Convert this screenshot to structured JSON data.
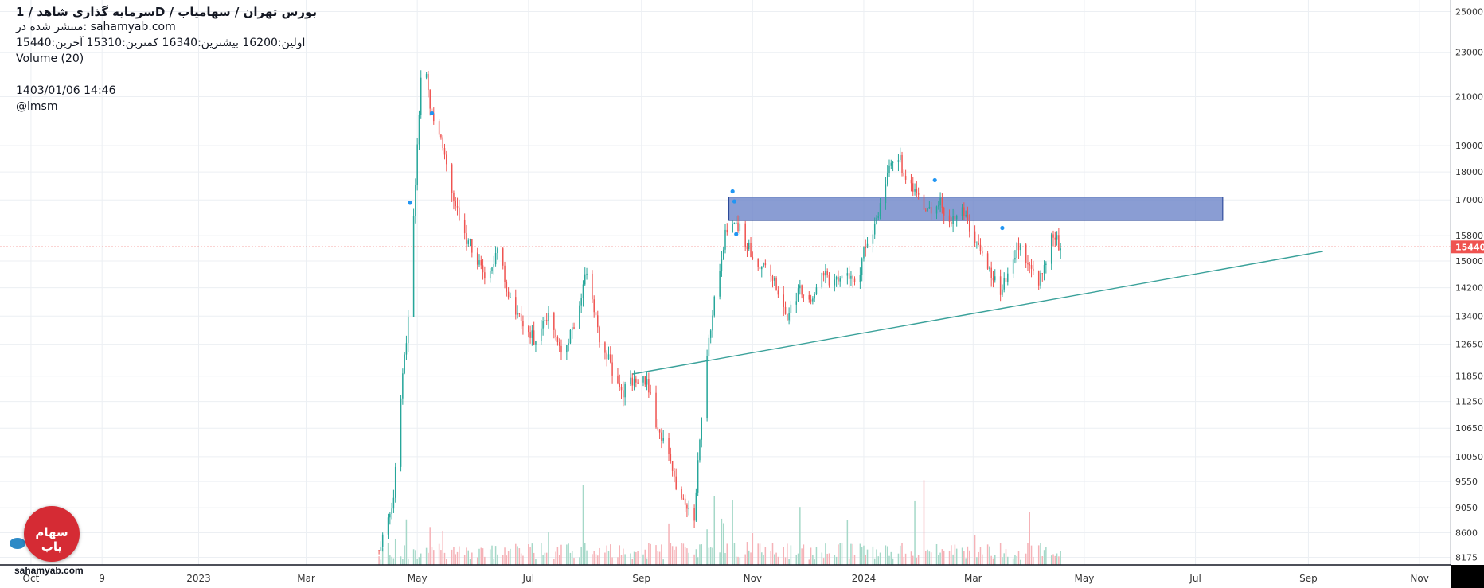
{
  "header": {
    "title": "سرمایه گذاری شاهد / 1D / بورس تهران / سهامیاب",
    "published": "منتشر شده در: sahamyab.com",
    "ohlc": "اولین:16200  بیشترین:16340  کمترین:15310  آخرین:15440",
    "volume_label": "Volume (20)",
    "datetime": "1403/01/06 14:46",
    "author": "@lmsm"
  },
  "branding": {
    "logo_text": "سهام یاب",
    "watermark": "sahamyab.com"
  },
  "colors": {
    "up": "#26a69a",
    "down": "#ef5350",
    "up_vol": "#a5d8c8",
    "down_vol": "#f5b2b7",
    "zone_fill": "#6d85c8",
    "zone_border": "#1c3b91",
    "trendline": "#3aa19a",
    "price_line": "#ef5350",
    "grid": "#eceff3",
    "axis_text": "#333333"
  },
  "chart_data": {
    "type": "candlestick",
    "interval": "1D",
    "y_scale": "log",
    "y_range": [
      8050,
      25600
    ],
    "x_range": [
      "2022-09-14",
      "2024-11-18"
    ],
    "y_ticks": [
      25000,
      23000,
      21000,
      19000,
      18000,
      17000,
      15800,
      15000,
      14200,
      13400,
      12650,
      11850,
      11250,
      10650,
      10050,
      9550,
      9050,
      8600,
      8175
    ],
    "x_ticks": [
      {
        "label": "Oct",
        "date": "2022-10-01"
      },
      {
        "label": "9",
        "date": "2022-11-09"
      },
      {
        "label": "2023",
        "date": "2023-01-01"
      },
      {
        "label": "Mar",
        "date": "2023-03-01"
      },
      {
        "label": "May",
        "date": "2023-05-01"
      },
      {
        "label": "Jul",
        "date": "2023-07-01"
      },
      {
        "label": "Sep",
        "date": "2023-09-01"
      },
      {
        "label": "Nov",
        "date": "2023-11-01"
      },
      {
        "label": "2024",
        "date": "2024-01-01"
      },
      {
        "label": "Mar",
        "date": "2024-03-01"
      },
      {
        "label": "May",
        "date": "2024-05-01"
      },
      {
        "label": "Jul",
        "date": "2024-07-01"
      },
      {
        "label": "Sep",
        "date": "2024-09-01"
      },
      {
        "label": "Nov",
        "date": "2024-11-01"
      }
    ],
    "last_price": 15440,
    "last_price_label": "15440",
    "path": [
      [
        "2023-04-10",
        8300
      ],
      [
        "2023-04-18",
        9200
      ],
      [
        "2023-04-22",
        11400
      ],
      [
        "2023-04-26",
        13300
      ],
      [
        "2023-05-01",
        18800
      ],
      [
        "2023-05-04",
        23500
      ],
      [
        "2023-05-08",
        20500
      ],
      [
        "2023-05-14",
        19200
      ],
      [
        "2023-05-20",
        17200
      ],
      [
        "2023-05-26",
        16000
      ],
      [
        "2023-06-02",
        15100
      ],
      [
        "2023-06-08",
        14500
      ],
      [
        "2023-06-14",
        15400
      ],
      [
        "2023-06-20",
        14000
      ],
      [
        "2023-06-28",
        13200
      ],
      [
        "2023-07-05",
        12700
      ],
      [
        "2023-07-12",
        13500
      ],
      [
        "2023-07-20",
        12400
      ],
      [
        "2023-07-27",
        13200
      ],
      [
        "2023-08-02",
        14700
      ],
      [
        "2023-08-08",
        13000
      ],
      [
        "2023-08-15",
        12100
      ],
      [
        "2023-08-22",
        11500
      ],
      [
        "2023-08-30",
        11800
      ],
      [
        "2023-09-04",
        11700
      ],
      [
        "2023-09-08",
        10900
      ],
      [
        "2023-09-14",
        10200
      ],
      [
        "2023-09-20",
        9500
      ],
      [
        "2023-09-25",
        9100
      ],
      [
        "2023-09-30",
        8800
      ],
      [
        "2023-10-03",
        10500
      ],
      [
        "2023-10-08",
        12800
      ],
      [
        "2023-10-13",
        14500
      ],
      [
        "2023-10-18",
        16100
      ],
      [
        "2023-10-22",
        16400
      ],
      [
        "2023-10-28",
        15600
      ],
      [
        "2023-11-03",
        15000
      ],
      [
        "2023-11-08",
        14700
      ],
      [
        "2023-11-14",
        14200
      ],
      [
        "2023-11-20",
        13400
      ],
      [
        "2023-11-27",
        14100
      ],
      [
        "2023-12-04",
        13900
      ],
      [
        "2023-12-10",
        14600
      ],
      [
        "2023-12-16",
        14300
      ],
      [
        "2023-12-22",
        14500
      ],
      [
        "2023-12-28",
        14200
      ],
      [
        "2024-01-02",
        15500
      ],
      [
        "2024-01-07",
        16200
      ],
      [
        "2024-01-12",
        17200
      ],
      [
        "2024-01-15",
        18300
      ],
      [
        "2024-01-19",
        18800
      ],
      [
        "2024-01-25",
        17600
      ],
      [
        "2024-01-31",
        17000
      ],
      [
        "2024-02-06",
        16600
      ],
      [
        "2024-02-12",
        16900
      ],
      [
        "2024-02-18",
        16300
      ],
      [
        "2024-02-24",
        16700
      ],
      [
        "2024-03-01",
        15700
      ],
      [
        "2024-03-06",
        15100
      ],
      [
        "2024-03-12",
        14500
      ],
      [
        "2024-03-17",
        14100
      ],
      [
        "2024-03-21",
        14800
      ],
      [
        "2024-03-26",
        15500
      ],
      [
        "2024-03-31",
        15000
      ],
      [
        "2024-04-05",
        14200
      ],
      [
        "2024-04-09",
        14700
      ],
      [
        "2024-04-14",
        15900
      ],
      [
        "2024-04-18",
        15440
      ]
    ],
    "zone": {
      "from": "2023-10-19",
      "to": "2024-07-16",
      "top": 17100,
      "bottom": 16300
    },
    "trendline": {
      "from": [
        "2023-08-27",
        11900
      ],
      "to": [
        "2024-09-09",
        15300
      ]
    }
  }
}
